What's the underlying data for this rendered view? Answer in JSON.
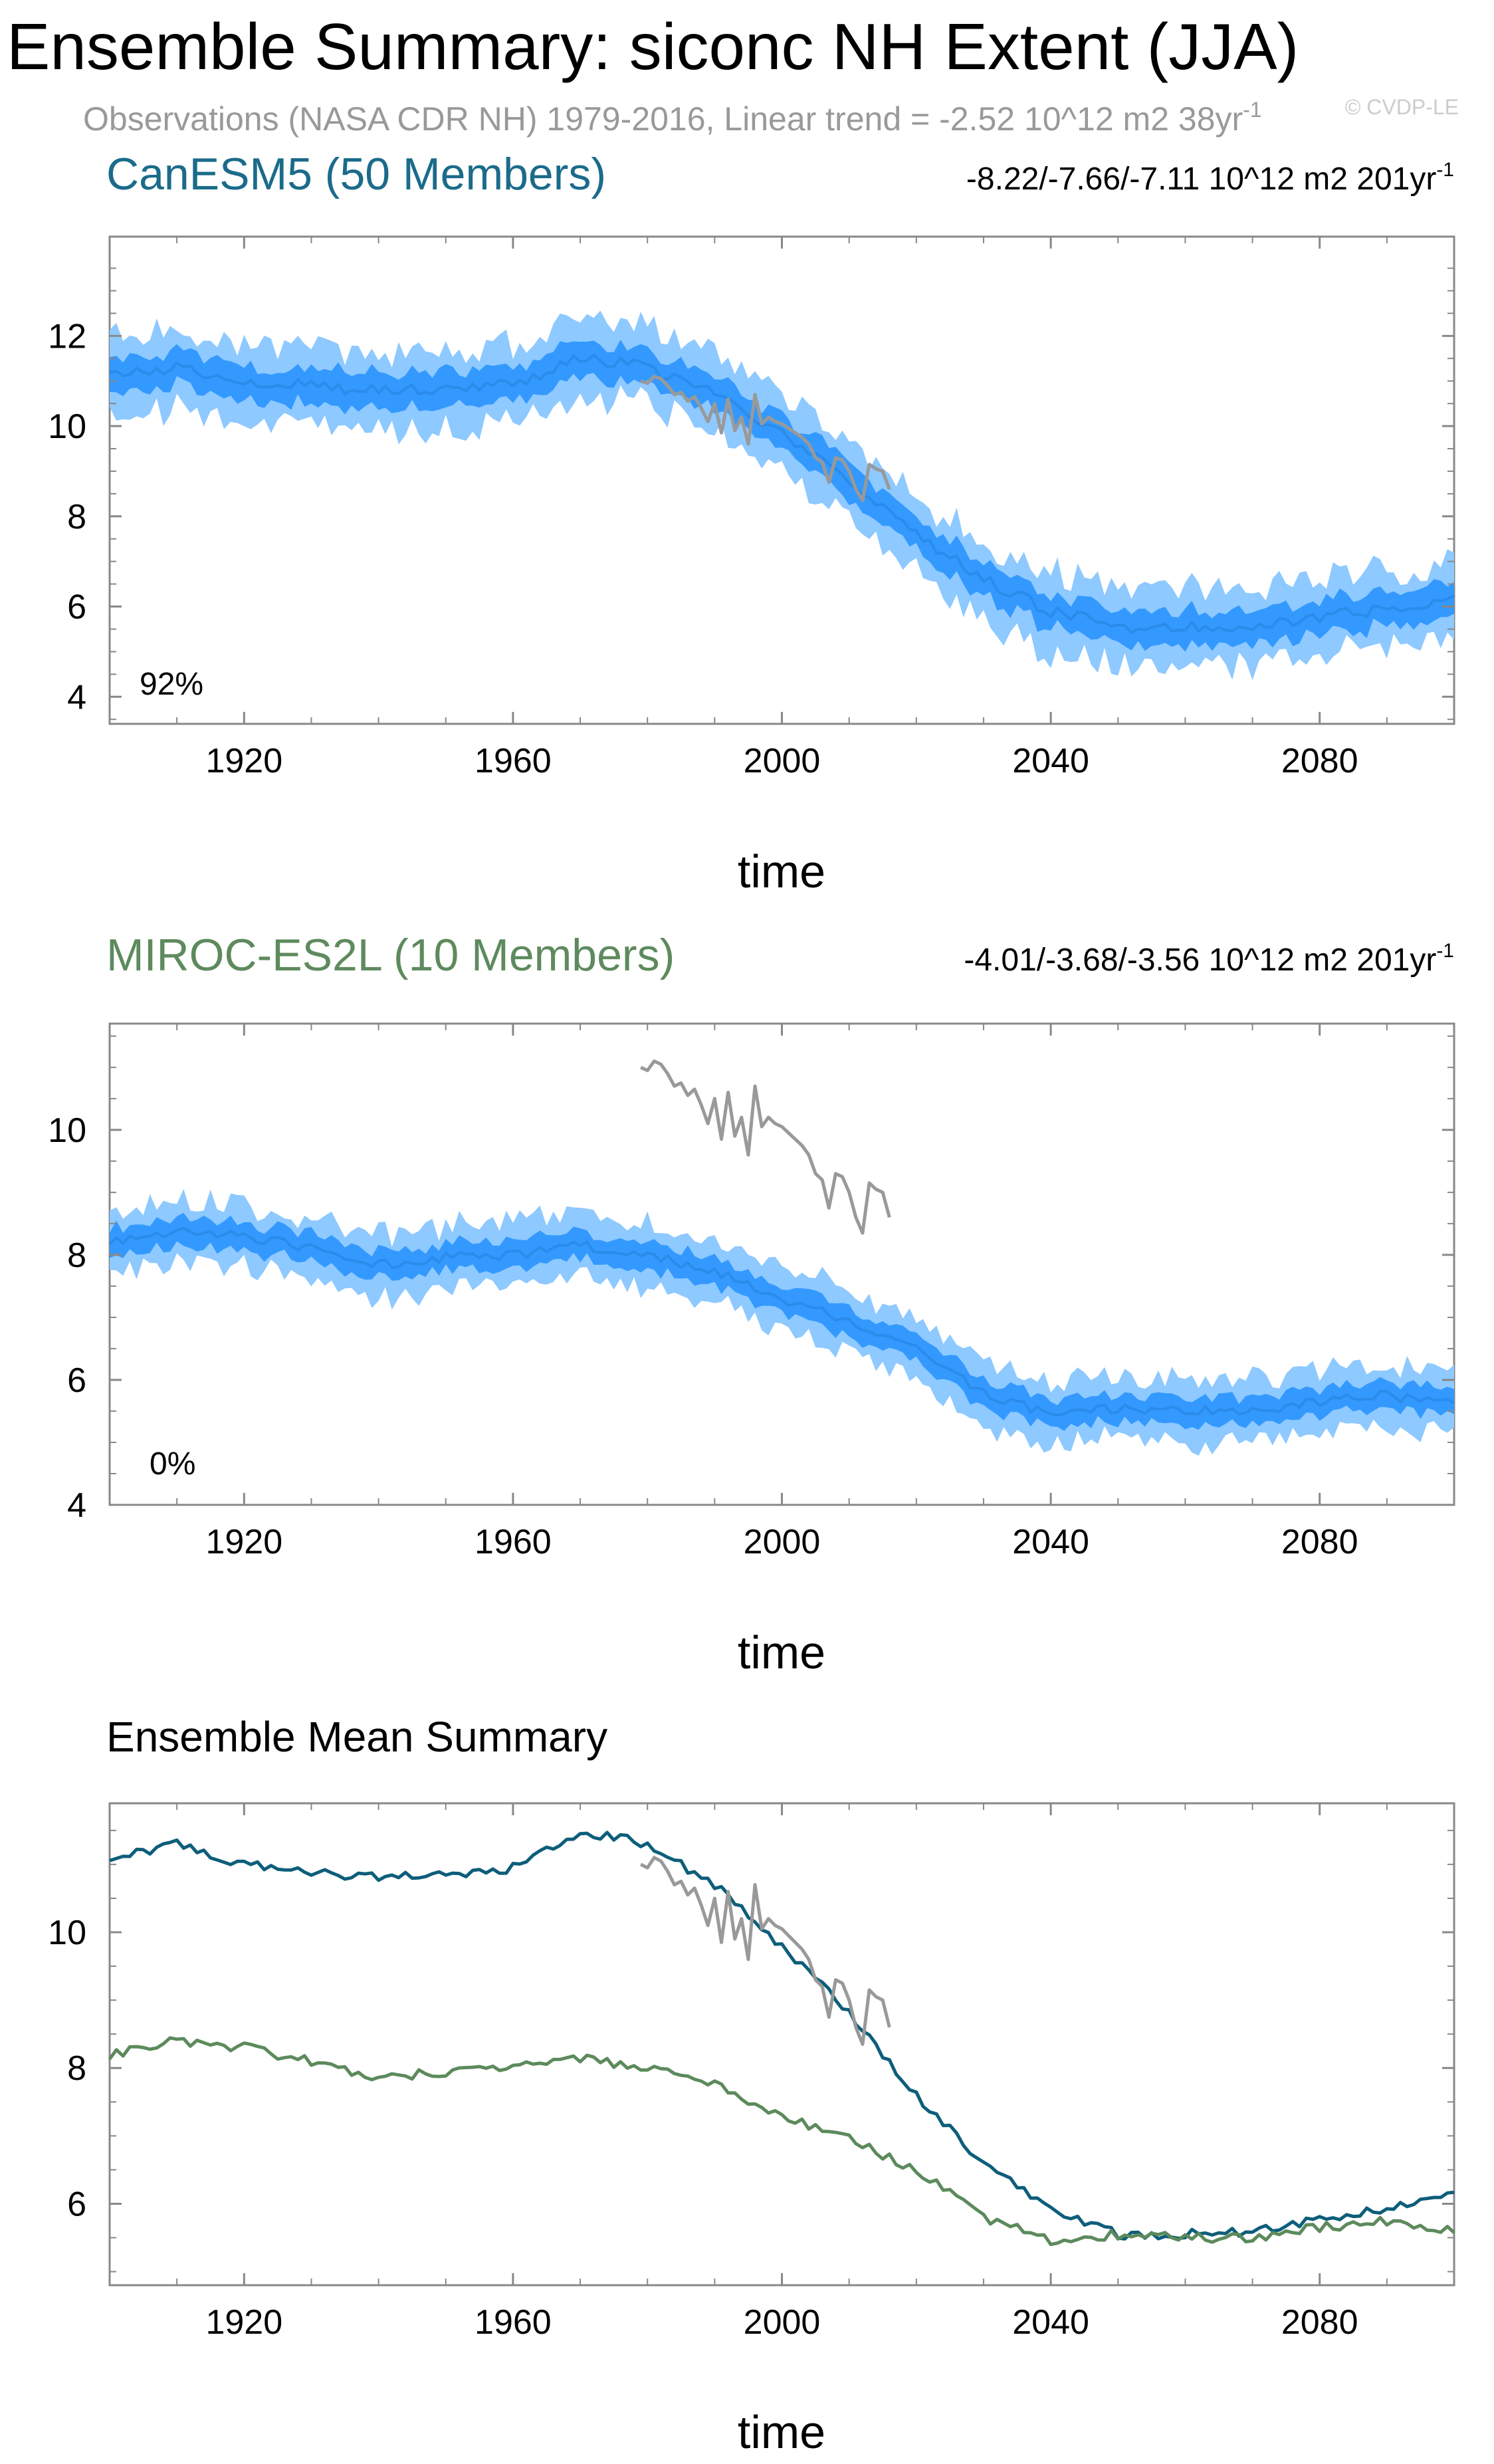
{
  "title": "Ensemble Summary: siconc NH Extent (JJA)",
  "subtitle_prefix": "Observations (NASA CDR NH) 1979-2016, Linear trend = -2.52 10^12 m2 38yr",
  "subtitle_exp": "-1",
  "watermark": "© CVDP-LE",
  "colors": {
    "canesm": "#1b6b8a",
    "miroc": "#5e8a5e",
    "obs": "#999999",
    "band_outer": "#8ec9ff",
    "band_inner": "#3399ff",
    "mean_line": "#2a8bea",
    "em_canesm": "#0d5e7a",
    "em_miroc": "#5c8a5c"
  },
  "chart_data": [
    {
      "type": "line",
      "panel": "CanESM5",
      "title": "CanESM5 (50 Members)",
      "trend_text": "-8.22/-7.66/-7.11 10^12 m2 201yr",
      "trend_exp": "-1",
      "percent_label": "92%",
      "xlabel": "time",
      "xlim": [
        1900,
        2100
      ],
      "ylim": [
        3.4,
        14.2
      ],
      "yticks": [
        4,
        6,
        8,
        10,
        12
      ],
      "xticks": [
        1920,
        1960,
        2000,
        2040,
        2080
      ],
      "series": [
        {
          "name": "CanESM5 ensemble",
          "x": [
            1900,
            1910,
            1920,
            1930,
            1940,
            1950,
            1960,
            1965,
            1970,
            1980,
            1990,
            2000,
            2010,
            2020,
            2030,
            2040,
            2050,
            2060,
            2070,
            2080,
            2090,
            2100
          ],
          "mean": [
            11.1,
            11.3,
            11.0,
            10.9,
            10.8,
            10.85,
            10.95,
            11.2,
            11.5,
            11.3,
            10.7,
            9.8,
            8.8,
            7.6,
            6.6,
            5.9,
            5.55,
            5.55,
            5.6,
            5.75,
            5.95,
            6.15
          ],
          "inner_halfwidth": 0.38,
          "outer_halfwidth": 0.85
        },
        {
          "name": "Observations (NASA CDR NH)",
          "x": [
            1979,
            1980,
            1981,
            1982,
            1983,
            1984,
            1985,
            1986,
            1987,
            1988,
            1989,
            1990,
            1991,
            1992,
            1993,
            1994,
            1995,
            1996,
            1997,
            1998,
            1999,
            2000,
            2001,
            2002,
            2003,
            2004,
            2005,
            2006,
            2007,
            2008,
            2009,
            2010,
            2011,
            2012,
            2013,
            2014,
            2015,
            2016
          ],
          "y": [
            11.0,
            10.95,
            11.1,
            11.05,
            10.9,
            10.7,
            10.75,
            10.55,
            10.65,
            10.4,
            10.1,
            10.5,
            9.85,
            10.6,
            9.9,
            10.2,
            9.6,
            10.7,
            10.05,
            10.2,
            10.1,
            10.05,
            9.95,
            9.85,
            9.75,
            9.6,
            9.3,
            9.2,
            8.75,
            9.3,
            9.25,
            9.0,
            8.6,
            8.35,
            9.15,
            9.05,
            9.0,
            8.6
          ]
        }
      ]
    },
    {
      "type": "line",
      "panel": "MIROC-ES2L",
      "title": "MIROC-ES2L (10 Members)",
      "trend_text": "-4.01/-3.68/-3.56 10^12 m2 201yr",
      "trend_exp": "-1",
      "percent_label": "0%",
      "xlabel": "time",
      "xlim": [
        1900,
        2100
      ],
      "ylim": [
        4,
        11.7
      ],
      "yticks": [
        4,
        6,
        8,
        10
      ],
      "xticks": [
        1920,
        1960,
        2000,
        2040,
        2080
      ],
      "series": [
        {
          "name": "MIROC-ES2L ensemble",
          "x": [
            1900,
            1910,
            1920,
            1930,
            1940,
            1950,
            1960,
            1970,
            1980,
            1990,
            2000,
            2010,
            2020,
            2030,
            2040,
            2050,
            2060,
            2070,
            2080,
            2090,
            2100
          ],
          "mean": [
            8.2,
            8.4,
            8.3,
            8.1,
            7.85,
            7.95,
            8.0,
            8.15,
            8.0,
            7.75,
            7.3,
            6.95,
            6.5,
            5.8,
            5.45,
            5.55,
            5.5,
            5.5,
            5.65,
            5.75,
            5.6
          ],
          "inner_halfwidth": 0.22,
          "outer_halfwidth": 0.5
        },
        {
          "name": "Observations (NASA CDR NH)",
          "x": [
            1979,
            1980,
            1981,
            1982,
            1983,
            1984,
            1985,
            1986,
            1987,
            1988,
            1989,
            1990,
            1991,
            1992,
            1993,
            1994,
            1995,
            1996,
            1997,
            1998,
            1999,
            2000,
            2001,
            2002,
            2003,
            2004,
            2005,
            2006,
            2007,
            2008,
            2009,
            2010,
            2011,
            2012,
            2013,
            2014,
            2015,
            2016
          ],
          "y": [
            11.0,
            10.95,
            11.1,
            11.05,
            10.9,
            10.7,
            10.75,
            10.55,
            10.65,
            10.4,
            10.1,
            10.5,
            9.85,
            10.6,
            9.9,
            10.2,
            9.6,
            10.7,
            10.05,
            10.2,
            10.1,
            10.05,
            9.95,
            9.85,
            9.75,
            9.6,
            9.3,
            9.2,
            8.75,
            9.3,
            9.25,
            9.0,
            8.6,
            8.35,
            9.15,
            9.05,
            9.0,
            8.6
          ]
        }
      ]
    },
    {
      "type": "line",
      "panel": "Ensemble Mean",
      "title": "Ensemble Mean Summary",
      "xlabel": "time",
      "xlim": [
        1900,
        2100
      ],
      "ylim": [
        4.8,
        11.9
      ],
      "yticks": [
        6,
        8,
        10
      ],
      "xticks": [
        1920,
        1960,
        2000,
        2040,
        2080
      ],
      "series": [
        {
          "name": "CanESM5 ensemble mean",
          "x": [
            1900,
            1910,
            1920,
            1930,
            1940,
            1950,
            1960,
            1965,
            1970,
            1980,
            1990,
            2000,
            2010,
            2020,
            2030,
            2040,
            2050,
            2060,
            2070,
            2080,
            2090,
            2100
          ],
          "y": [
            11.1,
            11.3,
            11.0,
            10.9,
            10.8,
            10.85,
            10.95,
            11.2,
            11.5,
            11.3,
            10.7,
            9.8,
            8.8,
            7.6,
            6.6,
            5.9,
            5.55,
            5.55,
            5.6,
            5.75,
            5.95,
            6.15
          ]
        },
        {
          "name": "MIROC-ES2L ensemble mean",
          "x": [
            1900,
            1910,
            1920,
            1930,
            1940,
            1950,
            1960,
            1970,
            1980,
            1990,
            2000,
            2010,
            2020,
            2030,
            2040,
            2050,
            2060,
            2070,
            2080,
            2090,
            2100
          ],
          "y": [
            8.2,
            8.4,
            8.3,
            8.1,
            7.85,
            7.95,
            8.0,
            8.15,
            8.0,
            7.75,
            7.3,
            6.95,
            6.5,
            5.8,
            5.45,
            5.55,
            5.5,
            5.5,
            5.65,
            5.75,
            5.6
          ]
        },
        {
          "name": "Observations (NASA CDR NH)",
          "x": [
            1979,
            1980,
            1981,
            1982,
            1983,
            1984,
            1985,
            1986,
            1987,
            1988,
            1989,
            1990,
            1991,
            1992,
            1993,
            1994,
            1995,
            1996,
            1997,
            1998,
            1999,
            2000,
            2001,
            2002,
            2003,
            2004,
            2005,
            2006,
            2007,
            2008,
            2009,
            2010,
            2011,
            2012,
            2013,
            2014,
            2015,
            2016
          ],
          "y": [
            11.0,
            10.95,
            11.1,
            11.05,
            10.9,
            10.7,
            10.75,
            10.55,
            10.65,
            10.4,
            10.1,
            10.5,
            9.85,
            10.6,
            9.9,
            10.2,
            9.6,
            10.7,
            10.05,
            10.2,
            10.1,
            10.05,
            9.95,
            9.85,
            9.75,
            9.6,
            9.3,
            9.2,
            8.75,
            9.3,
            9.25,
            9.0,
            8.6,
            8.35,
            9.15,
            9.05,
            9.0,
            8.6
          ]
        }
      ]
    }
  ]
}
